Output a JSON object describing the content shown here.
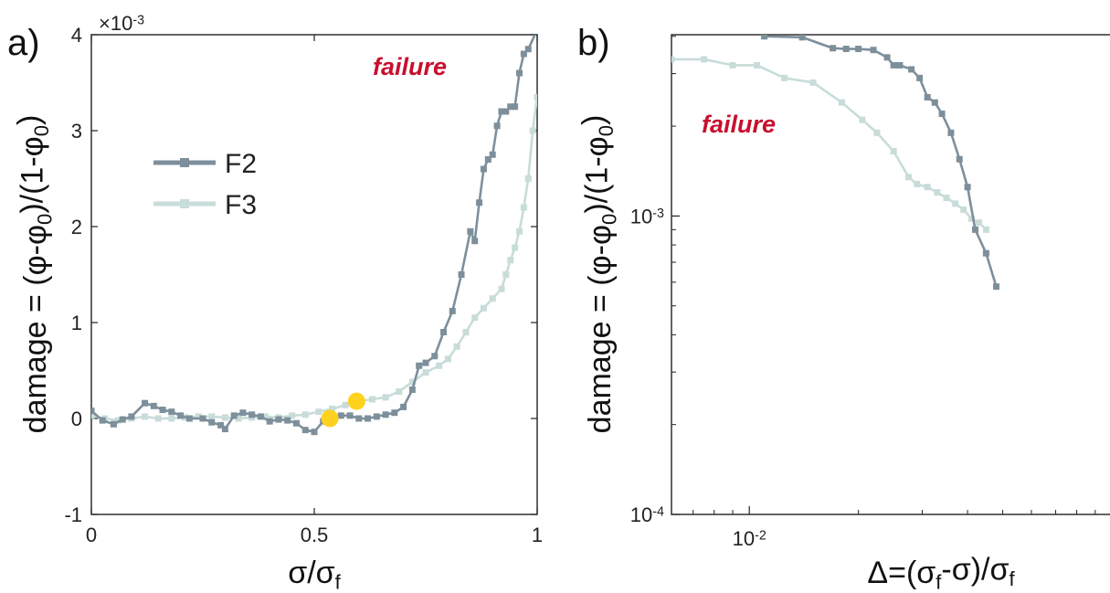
{
  "colors": {
    "F2": "#7d8f9b",
    "F3": "#c8dcd9",
    "failure": "#c8102e",
    "marker": "#ffd21f",
    "axis": "#222222"
  },
  "chart_data": [
    {
      "panel": "a)",
      "type": "line",
      "xlabel": "σ/σf",
      "ylabel": "damage = (φ-φ0)/(1-φ0)",
      "exponent_label": "×10-3",
      "annotation": "failure",
      "xlim": [
        0,
        1
      ],
      "ylim": [
        -1,
        4
      ],
      "yscale_factor": 0.001,
      "xticks": [
        {
          "v": 0,
          "label": "0"
        },
        {
          "v": 0.5,
          "label": "0.5"
        },
        {
          "v": 1,
          "label": "1"
        }
      ],
      "yticks": [
        {
          "v": -1,
          "label": "-1"
        },
        {
          "v": 0,
          "label": "0"
        },
        {
          "v": 1,
          "label": "1"
        },
        {
          "v": 2,
          "label": "2"
        },
        {
          "v": 3,
          "label": "3"
        },
        {
          "v": 4,
          "label": "4"
        }
      ],
      "legend": {
        "position": "upper-left",
        "entries": [
          "F2",
          "F3"
        ]
      },
      "series": [
        {
          "name": "F2",
          "x": [
            0,
            0.025,
            0.05,
            0.07,
            0.09,
            0.12,
            0.14,
            0.16,
            0.18,
            0.2,
            0.22,
            0.25,
            0.27,
            0.29,
            0.3,
            0.32,
            0.34,
            0.36,
            0.38,
            0.4,
            0.42,
            0.44,
            0.46,
            0.48,
            0.5,
            0.52,
            0.54,
            0.56,
            0.58,
            0.6,
            0.62,
            0.64,
            0.66,
            0.68,
            0.7,
            0.72,
            0.735,
            0.75,
            0.77,
            0.79,
            0.81,
            0.83,
            0.85,
            0.86,
            0.87,
            0.88,
            0.89,
            0.9,
            0.91,
            0.92,
            0.93,
            0.94,
            0.95,
            0.96,
            0.97,
            0.98,
            1.0
          ],
          "y": [
            0.08,
            -0.02,
            -0.06,
            -0.01,
            0.02,
            0.16,
            0.13,
            0.09,
            0.07,
            0.03,
            0.0,
            0.0,
            -0.04,
            -0.07,
            -0.11,
            0.03,
            0.06,
            0.04,
            0.02,
            -0.03,
            -0.01,
            -0.02,
            -0.05,
            -0.12,
            -0.14,
            -0.03,
            0.03,
            0.03,
            0.03,
            0.0,
            0.0,
            0.02,
            0.04,
            0.06,
            0.12,
            0.3,
            0.55,
            0.58,
            0.65,
            0.9,
            1.12,
            1.5,
            1.95,
            1.85,
            2.25,
            2.6,
            2.7,
            2.75,
            3.05,
            3.2,
            3.2,
            3.25,
            3.25,
            3.6,
            3.8,
            3.85,
            4.05
          ]
        },
        {
          "name": "F3",
          "x": [
            0,
            0.03,
            0.06,
            0.09,
            0.12,
            0.15,
            0.18,
            0.21,
            0.24,
            0.27,
            0.3,
            0.33,
            0.36,
            0.39,
            0.42,
            0.45,
            0.48,
            0.51,
            0.54,
            0.57,
            0.6,
            0.63,
            0.66,
            0.69,
            0.72,
            0.75,
            0.78,
            0.8,
            0.82,
            0.84,
            0.86,
            0.88,
            0.9,
            0.92,
            0.93,
            0.94,
            0.95,
            0.96,
            0.97,
            0.98,
            0.99,
            1.0
          ],
          "y": [
            0.03,
            0.0,
            -0.02,
            0.0,
            0.02,
            0.0,
            0.0,
            0.01,
            0.02,
            0.02,
            0.01,
            0.0,
            0.01,
            0.02,
            0.01,
            0.03,
            0.04,
            0.07,
            0.1,
            0.14,
            0.18,
            0.2,
            0.22,
            0.28,
            0.38,
            0.48,
            0.55,
            0.62,
            0.75,
            0.9,
            1.05,
            1.15,
            1.25,
            1.35,
            1.5,
            1.65,
            1.78,
            1.95,
            2.2,
            2.5,
            3.0,
            3.35
          ]
        }
      ],
      "highlight_points": [
        {
          "x": 0.535,
          "y": 0.0
        },
        {
          "x": 0.595,
          "y": 0.18
        }
      ]
    },
    {
      "panel": "b)",
      "type": "line",
      "xscale": "log",
      "yscale": "log",
      "xlabel": "Δ=(σf-σ)/σf",
      "ylabel": "damage = (φ-φ0)/(1-φ0)",
      "annotation": "failure",
      "xlim": [
        0.0061,
        0.1
      ],
      "ylim": [
        0.0001,
        0.00405
      ],
      "xticks": [
        {
          "v": 0.01,
          "label": "10-2"
        }
      ],
      "yticks": [
        {
          "v": 0.0001,
          "label": "10-4"
        },
        {
          "v": 0.001,
          "label": "10-3"
        }
      ],
      "series": [
        {
          "name": "F2",
          "x": [
            0.011,
            0.014,
            0.017,
            0.0185,
            0.02,
            0.022,
            0.024,
            0.025,
            0.026,
            0.028,
            0.0295,
            0.031,
            0.0325,
            0.034,
            0.036,
            0.038,
            0.04,
            0.042,
            0.045,
            0.048
          ],
          "y": [
            0.004,
            0.00397,
            0.00365,
            0.00363,
            0.00363,
            0.0036,
            0.0034,
            0.0032,
            0.0032,
            0.0031,
            0.0029,
            0.0025,
            0.0024,
            0.0022,
            0.0019,
            0.00155,
            0.00125,
            0.0009,
            0.00075,
            0.00058
          ]
        },
        {
          "name": "F3",
          "x": [
            0.0061,
            0.0075,
            0.009,
            0.0105,
            0.0125,
            0.015,
            0.018,
            0.0205,
            0.0225,
            0.025,
            0.0275,
            0.029,
            0.031,
            0.033,
            0.035,
            0.037,
            0.039,
            0.041,
            0.043,
            0.045
          ],
          "y": [
            0.00335,
            0.00335,
            0.0032,
            0.0032,
            0.0029,
            0.0028,
            0.0024,
            0.0021,
            0.0019,
            0.00165,
            0.00135,
            0.00128,
            0.00125,
            0.0012,
            0.00115,
            0.0011,
            0.00105,
            0.00098,
            0.00095,
            0.0009
          ]
        }
      ]
    }
  ]
}
